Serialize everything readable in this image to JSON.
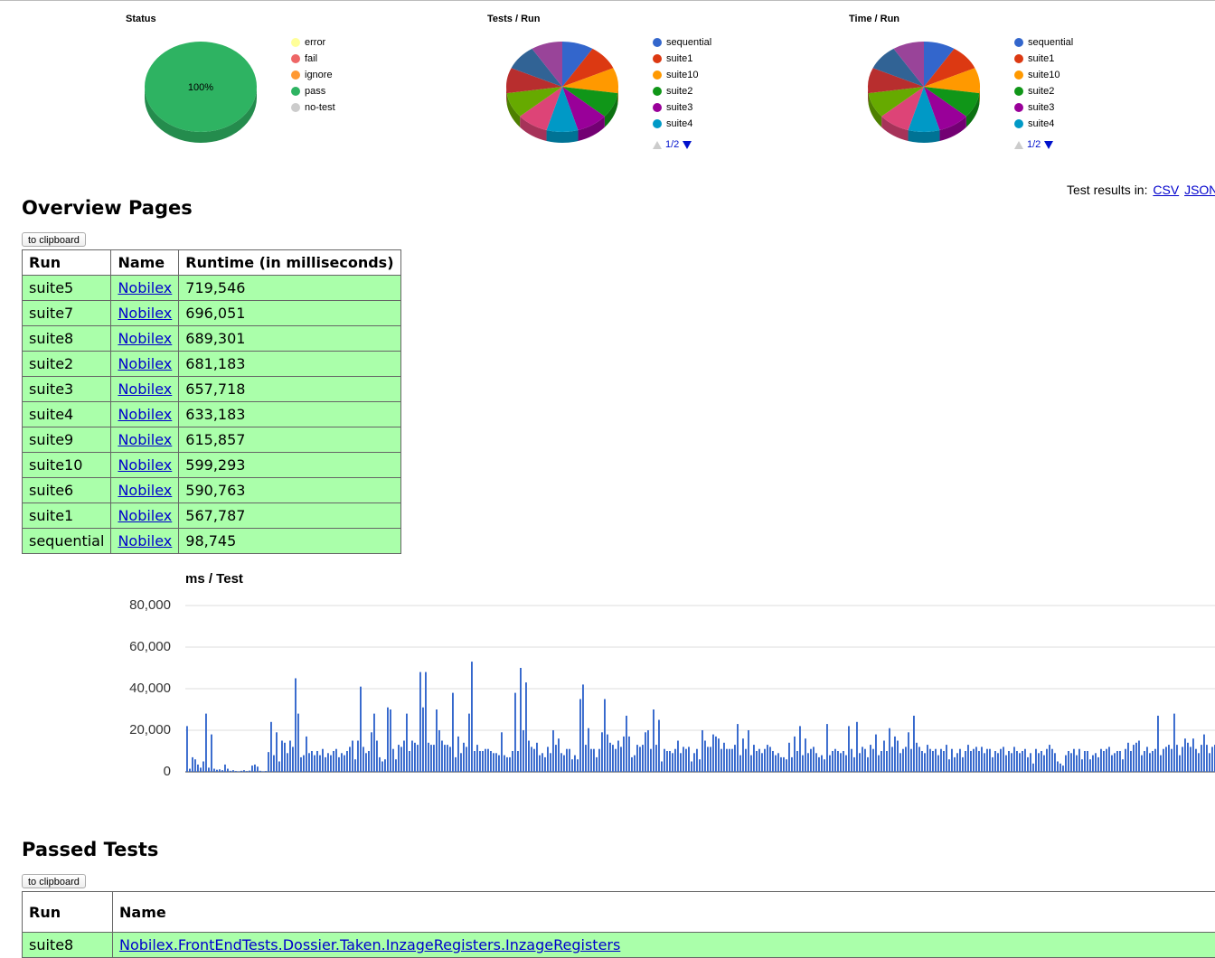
{
  "status_chart": {
    "title": "Status",
    "center_label": "100%",
    "legend": [
      {
        "label": "error",
        "color": "#ffff99"
      },
      {
        "label": "fail",
        "color": "#ee6666"
      },
      {
        "label": "ignore",
        "color": "#ff9933"
      },
      {
        "label": "pass",
        "color": "#2eb362"
      },
      {
        "label": "no-test",
        "color": "#cccccc"
      }
    ]
  },
  "tests_chart": {
    "title": "Tests / Run",
    "legend": [
      {
        "label": "sequential",
        "color": "#3366cc"
      },
      {
        "label": "suite1",
        "color": "#dc3912"
      },
      {
        "label": "suite10",
        "color": "#ff9900"
      },
      {
        "label": "suite2",
        "color": "#109618"
      },
      {
        "label": "suite3",
        "color": "#990099"
      },
      {
        "label": "suite4",
        "color": "#0099c6"
      }
    ],
    "pager": "1/2"
  },
  "time_chart": {
    "title": "Time / Run",
    "legend": [
      {
        "label": "sequential",
        "color": "#3366cc"
      },
      {
        "label": "suite1",
        "color": "#dc3912"
      },
      {
        "label": "suite10",
        "color": "#ff9900"
      },
      {
        "label": "suite2",
        "color": "#109618"
      },
      {
        "label": "suite3",
        "color": "#990099"
      },
      {
        "label": "suite4",
        "color": "#0099c6"
      }
    ],
    "pager": "1/2"
  },
  "results_links": {
    "prefix": "Test results in:",
    "csv": "CSV",
    "json": "JSON"
  },
  "overview": {
    "heading": "Overview Pages",
    "clipboard": "to clipboard",
    "columns": [
      "Run",
      "Name",
      "Runtime (in milliseconds)"
    ],
    "rows": [
      {
        "run": "suite5",
        "name": "Nobilex",
        "runtime": "719,546"
      },
      {
        "run": "suite7",
        "name": "Nobilex",
        "runtime": "696,051"
      },
      {
        "run": "suite8",
        "name": "Nobilex",
        "runtime": "689,301"
      },
      {
        "run": "suite2",
        "name": "Nobilex",
        "runtime": "681,183"
      },
      {
        "run": "suite3",
        "name": "Nobilex",
        "runtime": "657,718"
      },
      {
        "run": "suite4",
        "name": "Nobilex",
        "runtime": "633,183"
      },
      {
        "run": "suite9",
        "name": "Nobilex",
        "runtime": "615,857"
      },
      {
        "run": "suite10",
        "name": "Nobilex",
        "runtime": "599,293"
      },
      {
        "run": "suite6",
        "name": "Nobilex",
        "runtime": "590,763"
      },
      {
        "run": "suite1",
        "name": "Nobilex",
        "runtime": "567,787"
      },
      {
        "run": "sequential",
        "name": "Nobilex",
        "runtime": "98,745"
      }
    ]
  },
  "chart_data": {
    "type": "bar",
    "title": "ms / Test",
    "ylim": [
      0,
      80000
    ],
    "yticks": [
      "80,000",
      "60,000",
      "40,000",
      "20,000",
      "0"
    ],
    "grid": true,
    "color": "#3366cc",
    "values": [
      22000,
      1500,
      7000,
      6000,
      3500,
      2000,
      5000,
      28000,
      2000,
      18000,
      1500,
      1000,
      1200,
      800,
      3500,
      1500,
      500,
      800,
      400,
      300,
      500,
      800,
      400,
      600,
      3000,
      3500,
      2500,
      500,
      300,
      400,
      9500,
      24000,
      8000,
      19000,
      5000,
      15000,
      14000,
      9000,
      15000,
      12000,
      45000,
      28000,
      7000,
      8000,
      17000,
      9000,
      10000,
      8000,
      10000,
      8000,
      11000,
      7000,
      9000,
      8000,
      10000,
      11000,
      7000,
      9000,
      8000,
      10000,
      12000,
      15000,
      6000,
      15000,
      41000,
      12000,
      9000,
      10000,
      19000,
      28000,
      15000,
      7000,
      5000,
      6000,
      31000,
      30000,
      11000,
      6000,
      13000,
      12000,
      15000,
      28000,
      10000,
      15000,
      14000,
      13000,
      48000,
      31000,
      48000,
      14000,
      13000,
      13000,
      30000,
      20000,
      15000,
      13000,
      13000,
      12000,
      38000,
      7000,
      17000,
      9000,
      14000,
      12000,
      28000,
      53000,
      10000,
      13000,
      10000,
      10000,
      11000,
      11000,
      10000,
      9000,
      9000,
      8000,
      19000,
      8000,
      7000,
      7000,
      10000,
      38000,
      10000,
      50000,
      20000,
      43000,
      15000,
      12000,
      11000,
      14000,
      8000,
      9000,
      7000,
      12000,
      9000,
      20000,
      13000,
      16000,
      9000,
      8000,
      11000,
      11000,
      6000,
      8000,
      6000,
      35000,
      42000,
      13000,
      21000,
      11000,
      11000,
      7000,
      11000,
      19000,
      35000,
      18000,
      14000,
      13000,
      11000,
      15000,
      12000,
      17000,
      27000,
      17000,
      7000,
      8000,
      13000,
      12000,
      13000,
      19000,
      20000,
      11000,
      30000,
      13000,
      25000,
      5000,
      11000,
      10000,
      10000,
      9000,
      11000,
      15000,
      9000,
      12000,
      11000,
      12000,
      5000,
      9000,
      11000,
      6000,
      20000,
      15000,
      12000,
      12000,
      18000,
      17000,
      16000,
      11000,
      14000,
      11000,
      11000,
      11000,
      13000,
      23000,
      8000,
      16000,
      11000,
      20000,
      8000,
      13000,
      10000,
      11000,
      9000,
      11000,
      13000,
      12000,
      10000,
      8000,
      9000,
      7000,
      7000,
      6000,
      14000,
      7000,
      17000,
      10000,
      22000,
      8000,
      16000,
      9000,
      11000,
      12000,
      9000,
      7000,
      8000,
      6000,
      23000,
      8000,
      10000,
      11000,
      10000,
      9000,
      10000,
      8000,
      22000,
      11000,
      7000,
      24000,
      9000,
      12000,
      11000,
      7000,
      13000,
      11000,
      18000,
      8000,
      10000,
      15000,
      10000,
      21000,
      12000,
      17000,
      15000,
      9000,
      11000,
      12000,
      19000,
      11000,
      27000,
      14000,
      12000,
      10000,
      9000,
      13000,
      11000,
      10000,
      11000,
      8000,
      11000,
      10000,
      13000,
      6000,
      11000,
      7000,
      9000,
      11000,
      7000,
      10000,
      13000,
      10000,
      11000,
      12000,
      10000,
      12000,
      9000,
      11000,
      11000,
      7000,
      10000,
      9000,
      11000,
      12000,
      8000,
      10000,
      9000,
      12000,
      10000,
      9000,
      10000,
      11000,
      7000,
      9000,
      4000,
      11000,
      9000,
      10000,
      8000,
      11000,
      13000,
      11000,
      9000,
      5000,
      4000,
      3000,
      8000,
      10000,
      9000,
      11000,
      8000,
      11000,
      6000,
      10000,
      10000,
      6000,
      8000,
      9000,
      7000,
      11000,
      10000,
      11000,
      12000,
      8000,
      9000,
      10000,
      10000,
      6000,
      11000,
      14000,
      10000,
      13000,
      14000,
      15000,
      8000,
      10000,
      12000,
      9000,
      10000,
      11000,
      27000,
      8000,
      11000,
      12000,
      13000,
      11000,
      28000,
      13000,
      8000,
      12000,
      16000,
      14000,
      12000,
      16000,
      11000,
      9000,
      13000,
      18000,
      13000,
      9000,
      12000,
      13000,
      11000,
      12000,
      13000,
      10000,
      12000,
      16000,
      11000,
      11000,
      17000,
      14000,
      11000,
      10000,
      15000,
      10000,
      12000,
      9000,
      10000,
      11000,
      12000,
      9000,
      14000,
      10000,
      13000,
      12000,
      10000,
      12000,
      11000,
      9000,
      15000,
      13000,
      10000,
      17000,
      9000,
      11000,
      19000,
      17000,
      14000,
      14000,
      15000,
      11000,
      15000,
      13000,
      12000,
      15000,
      11000,
      21000,
      12000,
      13000,
      27000,
      14000,
      12000,
      11000,
      10000,
      14000,
      12000,
      10000,
      16000,
      13000,
      16000,
      15000,
      9000,
      11000,
      12000,
      10000,
      13000,
      13000,
      9000,
      20000,
      11000,
      18000,
      12000,
      13000,
      16000,
      12000,
      10000,
      13000,
      11000,
      11000,
      12000,
      10000,
      11000,
      10000,
      12000,
      10000,
      11000,
      9000,
      43000,
      45000,
      10000,
      10000,
      21000,
      12000,
      8000,
      9000,
      7000,
      10000,
      6000,
      7000,
      6000,
      5000,
      7000
    ]
  },
  "passed": {
    "heading": "Passed Tests",
    "clipboard": "to clipboard",
    "columns": [
      "Run",
      "Name"
    ],
    "rows": [
      {
        "run": "suite8",
        "name": "Nobilex.FrontEndTests.Dossier.Taken.InzageRegisters.InzageRegisters"
      }
    ]
  }
}
